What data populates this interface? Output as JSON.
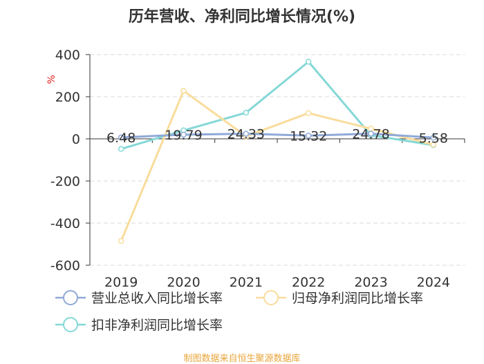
{
  "chart_data": {
    "type": "line",
    "title": "历年营收、净利同比增长情况(%)",
    "ylabel": "%",
    "categories": [
      "2019",
      "2020",
      "2021",
      "2022",
      "2023",
      "2024"
    ],
    "ylim": [
      -600,
      400
    ],
    "yticks": [
      400,
      200,
      0,
      -200,
      -400,
      -600
    ],
    "grid": true,
    "legend_position": "bottom",
    "series": [
      {
        "name": "营业总收入同比增长率",
        "color": "#8fa9d8",
        "values": [
          6.48,
          19.79,
          24.33,
          15.32,
          24.78,
          5.58
        ],
        "labels": [
          "6.48",
          "19.79",
          "24.33",
          "15.32",
          "24.78",
          "5.58"
        ]
      },
      {
        "name": "归母净利润同比增长率",
        "color": "#f9dc9b",
        "values": [
          -485,
          228,
          12,
          122,
          48,
          -28
        ]
      },
      {
        "name": "扣非净利润同比增长率",
        "color": "#84d8d6",
        "values": [
          -48,
          40,
          124,
          366,
          17,
          -30
        ]
      }
    ],
    "source": "制图数据来自恒生聚源数据库"
  }
}
